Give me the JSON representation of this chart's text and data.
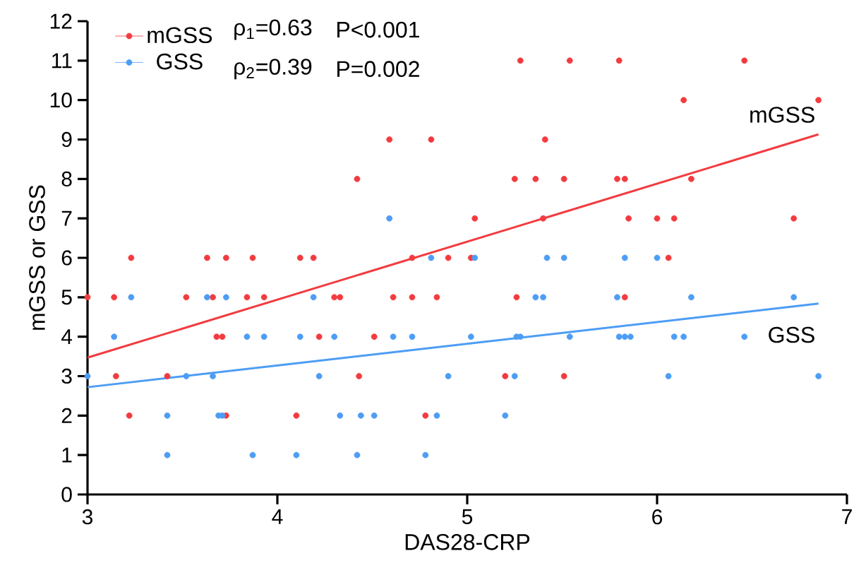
{
  "chart_data": {
    "type": "scatter",
    "xlabel": "DAS28-CRP",
    "ylabel": "mGSS or GSS",
    "xlim": [
      3,
      7
    ],
    "ylim": [
      0,
      12
    ],
    "xticks": [
      3,
      4,
      5,
      6,
      7
    ],
    "yticks": [
      0,
      1,
      2,
      3,
      4,
      5,
      6,
      7,
      8,
      9,
      10,
      11,
      12
    ],
    "grid": false,
    "legend": "top left",
    "series": [
      {
        "name": "mGSS",
        "marker": "circle",
        "color": "#f23b3f",
        "x": [
          5.28,
          5.54,
          5.8,
          6.46,
          6.14,
          6.85,
          4.59,
          4.81,
          5.41,
          4.42,
          5.25,
          5.36,
          5.51,
          5.79,
          5.83,
          6.18,
          5.04,
          5.4,
          5.85,
          6.0,
          6.09,
          6.72,
          3.23,
          3.63,
          3.73,
          3.87,
          4.12,
          4.19,
          4.71,
          4.9,
          5.02,
          6.06,
          3.0,
          3.14,
          3.52,
          3.66,
          3.84,
          3.93,
          4.3,
          4.33,
          4.61,
          4.71,
          4.84,
          5.26,
          5.83,
          3.68,
          3.71,
          4.22,
          4.51,
          3.15,
          3.42,
          4.43,
          5.2,
          5.51,
          3.22,
          3.73,
          4.1,
          4.78
        ],
        "values": [
          11,
          11,
          11,
          11,
          10,
          10,
          9,
          9,
          9,
          8,
          8,
          8,
          8,
          8,
          8,
          8,
          7,
          7,
          7,
          7,
          7,
          7,
          6,
          6,
          6,
          6,
          6,
          6,
          6,
          6,
          6,
          6,
          5,
          5,
          5,
          5,
          5,
          5,
          5,
          5,
          5,
          5,
          5,
          5,
          5,
          4,
          4,
          4,
          4,
          3,
          3,
          3,
          3,
          3,
          2,
          2,
          2,
          2
        ]
      },
      {
        "name": "GSS",
        "marker": "circle",
        "color": "#4d9df5",
        "x": [
          4.59,
          4.81,
          5.04,
          5.42,
          5.51,
          5.83,
          6.0,
          3.23,
          3.63,
          3.73,
          4.19,
          5.36,
          5.4,
          5.79,
          6.18,
          6.72,
          3.14,
          3.84,
          3.93,
          4.12,
          4.3,
          4.61,
          4.71,
          5.02,
          5.26,
          5.28,
          5.54,
          5.8,
          5.83,
          5.86,
          6.09,
          6.14,
          6.46,
          3.0,
          3.52,
          3.66,
          4.22,
          4.9,
          5.25,
          6.06,
          6.85,
          3.42,
          3.69,
          3.71,
          4.33,
          4.44,
          4.51,
          4.84,
          5.2,
          3.42,
          3.87,
          4.1,
          4.42,
          4.78
        ],
        "values": [
          7,
          6,
          6,
          6,
          6,
          6,
          6,
          5,
          5,
          5,
          5,
          5,
          5,
          5,
          5,
          5,
          4,
          4,
          4,
          4,
          4,
          4,
          4,
          4,
          4,
          4,
          4,
          4,
          4,
          4,
          4,
          4,
          4,
          3,
          3,
          3,
          3,
          3,
          3,
          3,
          3,
          2,
          2,
          2,
          2,
          2,
          2,
          2,
          2,
          1,
          1,
          1,
          1,
          1
        ]
      },
      {
        "type": "line",
        "name": "mGSS",
        "marker": "none",
        "color": "#f23b3f",
        "x": [
          3,
          6.85
        ],
        "values": [
          3.47,
          9.13
        ]
      },
      {
        "type": "line",
        "name": "GSS",
        "marker": "none",
        "color": "#4d9df5",
        "x": [
          3,
          6.85
        ],
        "values": [
          2.72,
          4.84
        ]
      }
    ],
    "annotations": [
      "ρ$_{1}$=0.63",
      "P<0.001",
      "ρ$_{2}$=0.39",
      "P=0.002"
    ]
  }
}
